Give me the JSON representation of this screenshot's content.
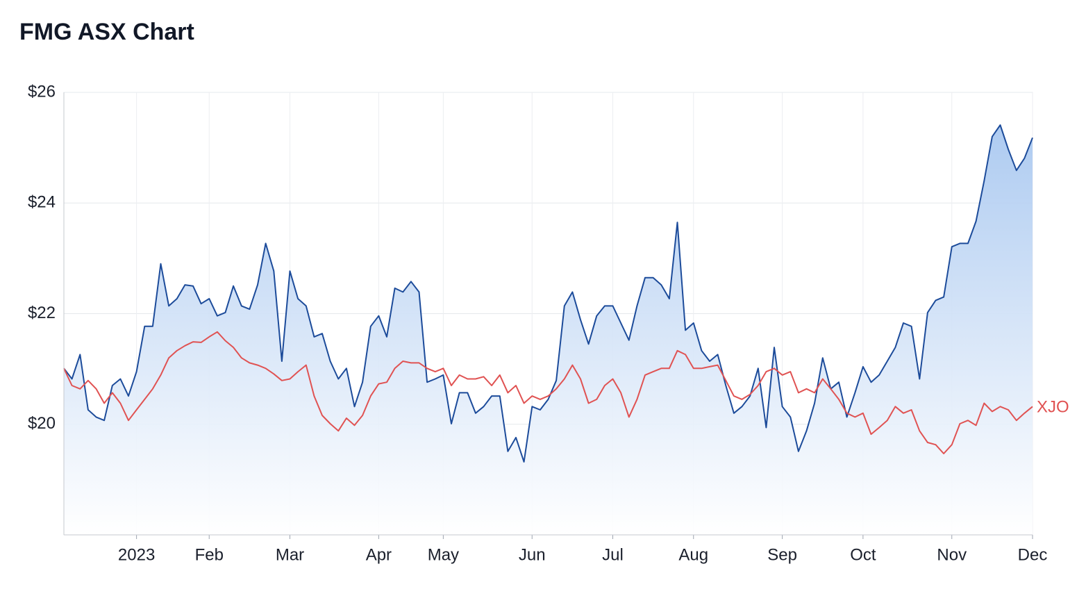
{
  "chart_data": {
    "type": "line",
    "title": "FMG ASX Chart",
    "categories": [
      null,
      null,
      null,
      null,
      null,
      null,
      null,
      null,
      null,
      "2023",
      null,
      null,
      null,
      null,
      null,
      null,
      null,
      null,
      "Feb",
      null,
      null,
      null,
      null,
      null,
      null,
      null,
      null,
      null,
      "Mar",
      null,
      null,
      null,
      null,
      null,
      null,
      null,
      null,
      null,
      null,
      "Apr",
      null,
      null,
      null,
      null,
      null,
      null,
      null,
      "May",
      null,
      null,
      null,
      null,
      null,
      null,
      null,
      null,
      null,
      null,
      "Jun",
      null,
      null,
      null,
      null,
      null,
      null,
      null,
      null,
      null,
      "Jul",
      null,
      null,
      null,
      null,
      null,
      null,
      null,
      null,
      null,
      "Aug",
      null,
      null,
      null,
      null,
      null,
      null,
      null,
      null,
      null,
      null,
      "Sep",
      null,
      null,
      null,
      null,
      null,
      null,
      null,
      null,
      null,
      "Oct",
      null,
      null,
      null,
      null,
      null,
      null,
      null,
      null,
      null,
      null,
      "Nov",
      null,
      null,
      null,
      null,
      null,
      null,
      null,
      null,
      null,
      "Dec"
    ],
    "series": [
      {
        "color": "#1c4b9a",
        "area": true,
        "values": [
          21.01,
          20.82,
          21.26,
          20.26,
          20.13,
          20.07,
          20.7,
          20.82,
          20.51,
          20.95,
          21.77,
          21.77,
          22.9,
          22.14,
          22.27,
          22.52,
          22.5,
          22.18,
          22.27,
          21.96,
          22.02,
          22.5,
          22.14,
          22.08,
          22.52,
          23.27,
          22.77,
          21.14,
          22.77,
          22.27,
          22.14,
          21.58,
          21.64,
          21.14,
          20.82,
          21.01,
          20.32,
          20.76,
          21.77,
          21.96,
          21.58,
          22.46,
          22.39,
          22.58,
          22.39,
          20.76,
          20.82,
          20.89,
          20.01,
          20.57,
          20.57,
          20.2,
          20.32,
          20.51,
          20.51,
          19.51,
          19.76,
          19.32,
          20.32,
          20.26,
          20.45,
          20.79,
          22.14,
          22.39,
          21.89,
          21.45,
          21.96,
          22.14,
          22.14,
          21.83,
          21.52,
          22.14,
          22.65,
          22.65,
          22.52,
          22.27,
          23.65,
          21.7,
          21.83,
          21.33,
          21.14,
          21.26,
          20.7,
          20.2,
          20.32,
          20.51,
          21.01,
          19.94,
          21.39,
          20.32,
          20.13,
          19.51,
          19.88,
          20.38,
          21.2,
          20.64,
          20.76,
          20.13,
          20.57,
          21.04,
          20.76,
          20.89,
          21.14,
          21.39,
          21.83,
          21.77,
          20.82,
          22.02,
          22.24,
          22.3,
          23.21,
          23.27,
          23.27,
          23.67,
          24.4,
          25.2,
          25.41,
          24.97,
          24.59,
          24.81,
          25.18
        ]
      },
      {
        "name": "XJO",
        "color": "#e05252",
        "values": [
          21.01,
          20.7,
          20.64,
          20.79,
          20.64,
          20.38,
          20.57,
          20.38,
          20.07,
          20.26,
          20.45,
          20.64,
          20.89,
          21.2,
          21.33,
          21.42,
          21.49,
          21.48,
          21.58,
          21.67,
          21.51,
          21.39,
          21.2,
          21.11,
          21.07,
          21.01,
          20.91,
          20.79,
          20.82,
          20.95,
          21.07,
          20.51,
          20.16,
          20.01,
          19.88,
          20.11,
          19.98,
          20.16,
          20.51,
          20.73,
          20.76,
          21.01,
          21.14,
          21.11,
          21.11,
          21.01,
          20.95,
          21.01,
          20.7,
          20.89,
          20.82,
          20.82,
          20.86,
          20.7,
          20.89,
          20.57,
          20.7,
          20.38,
          20.51,
          20.45,
          20.51,
          20.64,
          20.82,
          21.07,
          20.82,
          20.38,
          20.45,
          20.7,
          20.82,
          20.57,
          20.13,
          20.45,
          20.89,
          20.95,
          21.01,
          21.01,
          21.33,
          21.26,
          21.01,
          21.01,
          21.04,
          21.07,
          20.79,
          20.51,
          20.45,
          20.54,
          20.7,
          20.95,
          21.01,
          20.89,
          20.95,
          20.57,
          20.64,
          20.57,
          20.82,
          20.64,
          20.45,
          20.2,
          20.13,
          20.2,
          19.82,
          19.94,
          20.07,
          20.32,
          20.2,
          20.26,
          19.88,
          19.67,
          19.63,
          19.47,
          19.63,
          20.01,
          20.07,
          19.98,
          20.38,
          20.23,
          20.32,
          20.26,
          20.07,
          20.2,
          20.32
        ]
      }
    ],
    "ylim": [
      18,
      26
    ],
    "yticks": [
      {
        "value": 20,
        "label": "$20"
      },
      {
        "value": 22,
        "label": "$22"
      },
      {
        "value": 24,
        "label": "$24"
      },
      {
        "value": 26,
        "label": "$26"
      }
    ],
    "grid": true
  }
}
